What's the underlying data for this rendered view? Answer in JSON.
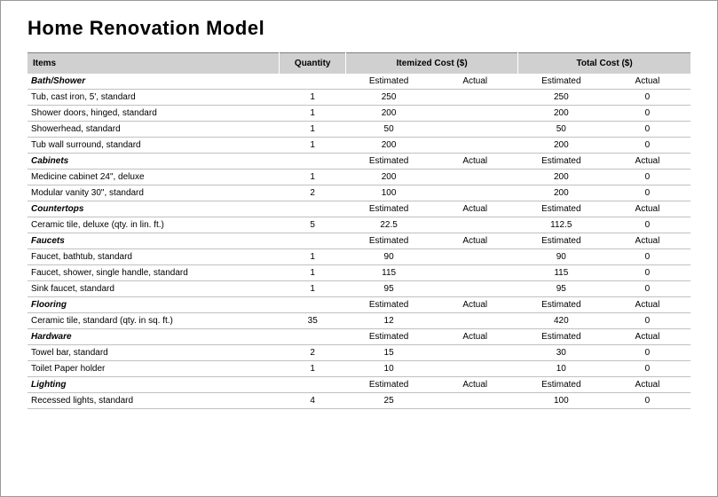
{
  "title": "Home Renovation Model",
  "columns": {
    "items": "Items",
    "quantity": "Quantity",
    "itemized_cost": "Itemized Cost ($)",
    "total_cost": "Total Cost ($)",
    "estimated": "Estimated",
    "actual": "Actual"
  },
  "sections": [
    {
      "name": "Bath/Shower",
      "show_sublabels": false,
      "rows": [
        {
          "item": "Tub, cast iron, 5', standard",
          "qty": "1",
          "est": "250",
          "act": "",
          "test": "250",
          "tact": "0"
        },
        {
          "item": "Shower doors, hinged, standard",
          "qty": "1",
          "est": "200",
          "act": "",
          "test": "200",
          "tact": "0"
        },
        {
          "item": "Showerhead, standard",
          "qty": "1",
          "est": "50",
          "act": "",
          "test": "50",
          "tact": "0"
        },
        {
          "item": "Tub wall surround, standard",
          "qty": "1",
          "est": "200",
          "act": "",
          "test": "200",
          "tact": "0"
        }
      ]
    },
    {
      "name": "Cabinets",
      "show_sublabels": true,
      "rows": [
        {
          "item": "Medicine cabinet 24\", deluxe",
          "qty": "1",
          "est": "200",
          "act": "",
          "test": "200",
          "tact": "0"
        },
        {
          "item": "Modular vanity 30\", standard",
          "qty": "2",
          "est": "100",
          "act": "",
          "test": "200",
          "tact": "0"
        }
      ]
    },
    {
      "name": "Countertops",
      "show_sublabels": true,
      "rows": [
        {
          "item": "Ceramic tile, deluxe (qty. in lin. ft.)",
          "qty": "5",
          "est": "22.5",
          "act": "",
          "test": "112.5",
          "tact": "0"
        }
      ]
    },
    {
      "name": "Faucets",
      "show_sublabels": true,
      "rows": [
        {
          "item": "Faucet, bathtub, standard",
          "qty": "1",
          "est": "90",
          "act": "",
          "test": "90",
          "tact": "0"
        },
        {
          "item": "Faucet, shower, single handle, standard",
          "qty": "1",
          "est": "115",
          "act": "",
          "test": "115",
          "tact": "0"
        },
        {
          "item": "Sink faucet, standard",
          "qty": "1",
          "est": "95",
          "act": "",
          "test": "95",
          "tact": "0"
        }
      ]
    },
    {
      "name": "Flooring",
      "show_sublabels": true,
      "rows": [
        {
          "item": "Ceramic tile, standard (qty. in sq. ft.)",
          "qty": "35",
          "est": "12",
          "act": "",
          "test": "420",
          "tact": "0"
        }
      ]
    },
    {
      "name": "Hardware",
      "show_sublabels": true,
      "rows": [
        {
          "item": "Towel bar, standard",
          "qty": "2",
          "est": "15",
          "act": "",
          "test": "30",
          "tact": "0"
        },
        {
          "item": "Toilet Paper holder",
          "qty": "1",
          "est": "10",
          "act": "",
          "test": "10",
          "tact": "0"
        }
      ]
    },
    {
      "name": "Lighting",
      "show_sublabels": true,
      "rows": [
        {
          "item": "Recessed lights, standard",
          "qty": "4",
          "est": "25",
          "act": "",
          "test": "100",
          "tact": "0"
        }
      ]
    }
  ],
  "style": {
    "header_bg": "#d0d0d0",
    "border_color": "#c0c0c0",
    "title_fontsize": 22,
    "body_fontsize": 10
  }
}
